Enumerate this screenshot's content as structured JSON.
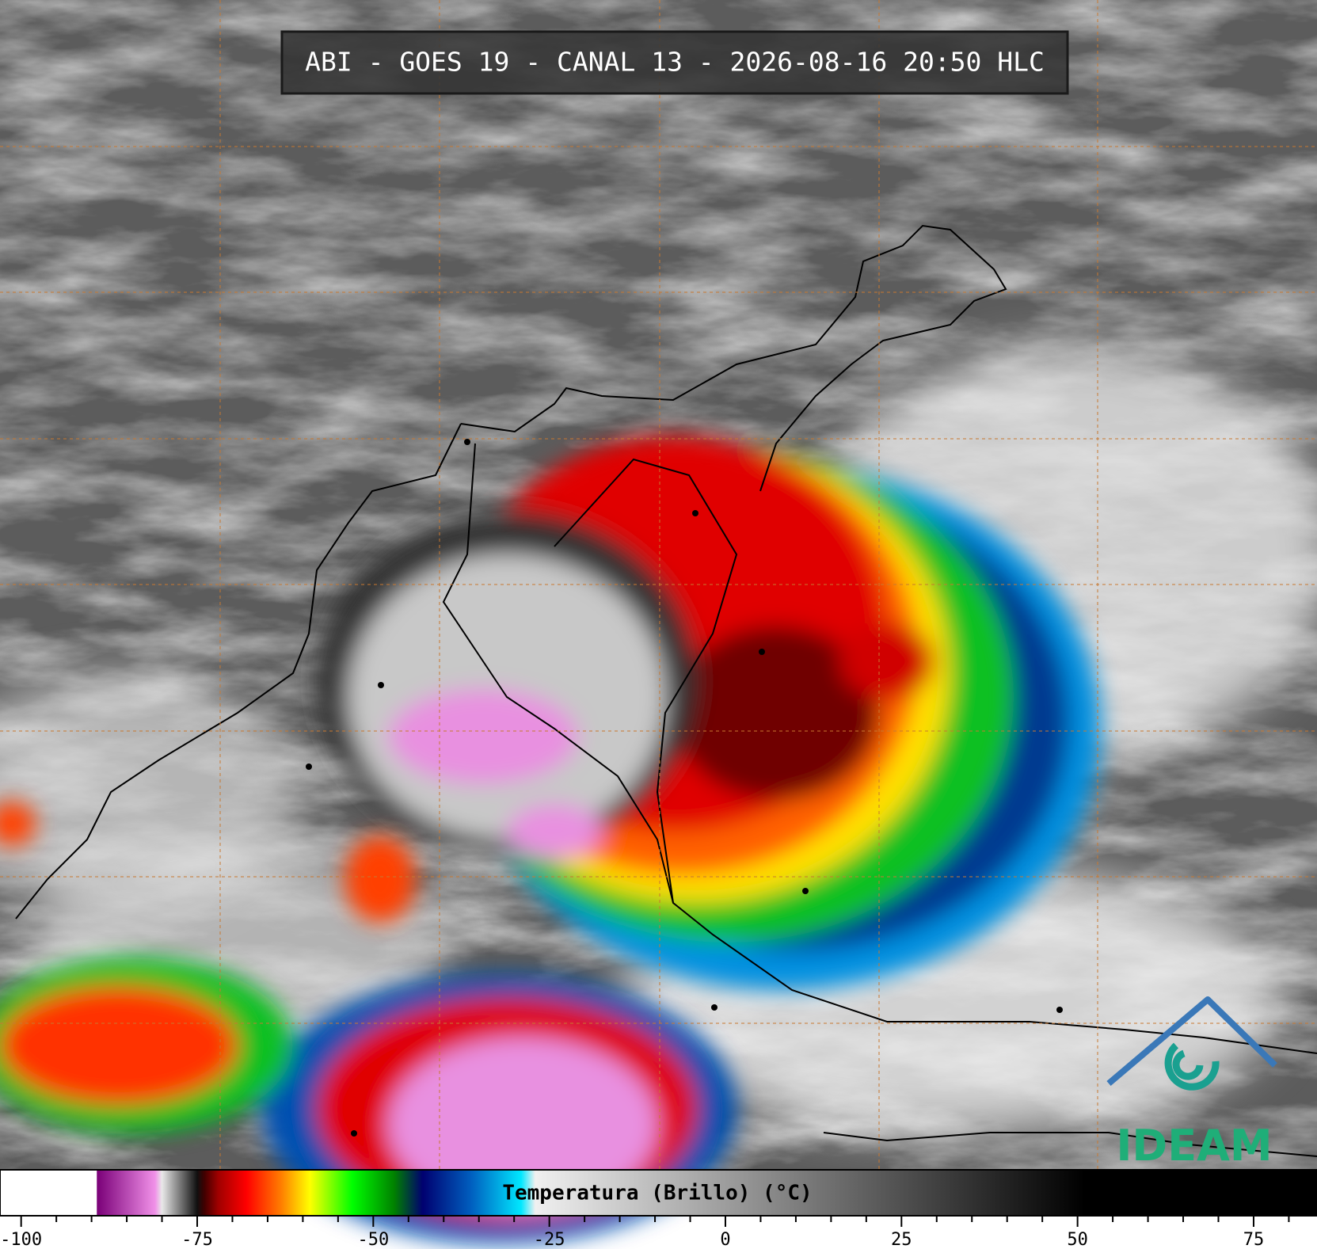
{
  "header": {
    "title": "ABI - GOES 19 - CANAL 13 - 2026-08-16 20:50 HLC"
  },
  "colorbar": {
    "label": "Temperatura (Brillo) (°C)",
    "xlim": [
      -103,
      84
    ],
    "ticks": [
      -100,
      -75,
      -50,
      -25,
      0,
      25,
      50,
      75
    ],
    "minor_ticks": [
      -95,
      -90,
      -85,
      -80,
      -70,
      -65,
      -60,
      -55,
      -45,
      -40,
      -35,
      -30,
      -20,
      -15,
      -10,
      -5,
      5,
      10,
      15,
      20,
      30,
      35,
      40,
      45,
      55,
      60,
      65,
      70,
      80
    ],
    "stops": [
      {
        "value": -103,
        "color": "#ffffff"
      },
      {
        "value": -89.3,
        "color": "#ffffff"
      },
      {
        "value": -89.2,
        "color": "#7a0078"
      },
      {
        "value": -81,
        "color": "#f090e8"
      },
      {
        "value": -80,
        "color": "#e8e8e8"
      },
      {
        "value": -75,
        "color": "#101010"
      },
      {
        "value": -74,
        "color": "#400000"
      },
      {
        "value": -72,
        "color": "#a00000"
      },
      {
        "value": -68,
        "color": "#ff0000"
      },
      {
        "value": -63,
        "color": "#ff8000"
      },
      {
        "value": -59,
        "color": "#ffff00"
      },
      {
        "value": -53,
        "color": "#00ff00"
      },
      {
        "value": -47,
        "color": "#008000"
      },
      {
        "value": -43,
        "color": "#000070"
      },
      {
        "value": -36,
        "color": "#0060c0"
      },
      {
        "value": -29,
        "color": "#00e8ff"
      },
      {
        "value": -27,
        "color": "#f0f0f0"
      },
      {
        "value": 51,
        "color": "#000000"
      },
      {
        "value": 84,
        "color": "#000000"
      }
    ]
  },
  "logo": {
    "text": "IDEAM"
  }
}
